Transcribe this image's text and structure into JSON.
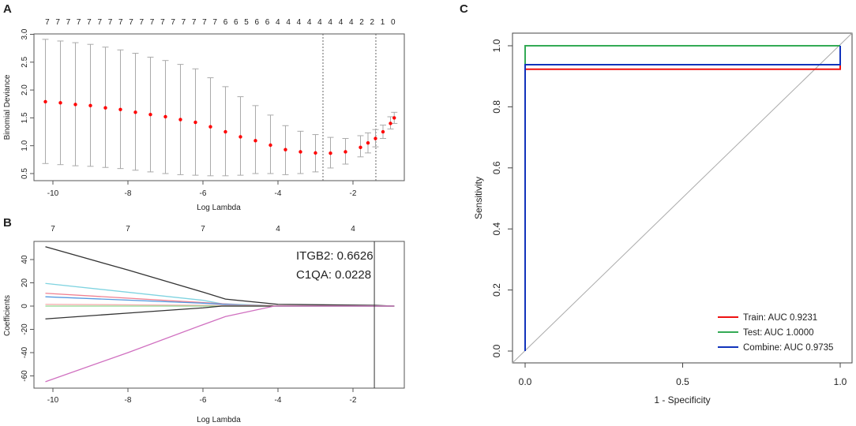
{
  "chart_data": [
    {
      "panel": "A",
      "type": "scatter",
      "title": "",
      "xlabel": "Log Lambda",
      "ylabel": "Binomial Deviance",
      "xlim": [
        -10.5,
        -0.6
      ],
      "ylim": [
        0.4,
        3.05
      ],
      "xticks": [
        -10,
        -8,
        -6,
        -4,
        -2
      ],
      "yticks": [
        0.5,
        1.0,
        1.5,
        2.0,
        2.5,
        3.0
      ],
      "top_counts": [
        "7",
        "7",
        "7",
        "7",
        "7",
        "7",
        "7",
        "7",
        "7",
        "7",
        "7",
        "7",
        "7",
        "7",
        "7",
        "7",
        "7",
        "6",
        "6",
        "5",
        "6",
        "6",
        "4",
        "4",
        "4",
        "4",
        "4",
        "4",
        "4",
        "4",
        "2",
        "2",
        "1",
        "0"
      ],
      "top_counts_range": [
        -10.15,
        -0.93
      ],
      "vlines": [
        -2.8,
        -1.39
      ],
      "points": {
        "x": [
          -10.2,
          -9.8,
          -9.4,
          -9.0,
          -8.6,
          -8.2,
          -7.8,
          -7.4,
          -7.0,
          -6.6,
          -6.2,
          -5.8,
          -5.4,
          -5.0,
          -4.6,
          -4.2,
          -3.8,
          -3.4,
          -3.0,
          -2.6,
          -2.2,
          -1.8,
          -1.6,
          -1.4,
          -1.2,
          -1.0,
          -0.9
        ],
        "mean": [
          1.79,
          1.77,
          1.74,
          1.72,
          1.68,
          1.65,
          1.6,
          1.56,
          1.52,
          1.47,
          1.42,
          1.34,
          1.25,
          1.16,
          1.09,
          1.01,
          0.93,
          0.89,
          0.87,
          0.865,
          0.89,
          0.97,
          1.05,
          1.13,
          1.25,
          1.4,
          1.5
        ],
        "upper": [
          2.91,
          2.88,
          2.85,
          2.82,
          2.77,
          2.72,
          2.66,
          2.59,
          2.53,
          2.46,
          2.38,
          2.22,
          2.06,
          1.88,
          1.72,
          1.55,
          1.36,
          1.26,
          1.2,
          1.15,
          1.13,
          1.18,
          1.23,
          1.29,
          1.37,
          1.52,
          1.6
        ],
        "lower": [
          0.68,
          0.66,
          0.64,
          0.63,
          0.61,
          0.59,
          0.56,
          0.53,
          0.5,
          0.48,
          0.47,
          0.46,
          0.46,
          0.47,
          0.5,
          0.5,
          0.48,
          0.5,
          0.53,
          0.6,
          0.67,
          0.8,
          0.87,
          0.98,
          1.13,
          1.3,
          1.4
        ]
      },
      "point_color": "#ff0000",
      "errorbar_color": "#aaaaaa"
    },
    {
      "panel": "B",
      "type": "line",
      "xlabel": "Log Lambda",
      "ylabel": "Coefficients",
      "xlim": [
        -10.5,
        -0.6
      ],
      "ylim": [
        -71,
        57
      ],
      "xticks": [
        -10,
        -8,
        -6,
        -4,
        -2
      ],
      "yticks": [
        -60,
        -40,
        -20,
        0,
        20,
        40
      ],
      "top_labels": [
        "7",
        "7",
        "7",
        "4",
        "4"
      ],
      "vline": -1.43,
      "annotations": [
        "ITGB2: 0.6626",
        "C1QA: 0.0228"
      ],
      "series": [
        {
          "name": "black-upper",
          "color": "#333333",
          "x": [
            -10.2,
            -8,
            -6,
            -5.4,
            -4,
            -1.4,
            -0.9
          ],
          "y": [
            51,
            31,
            12,
            6,
            1.5,
            0.7,
            0
          ]
        },
        {
          "name": "cyan",
          "color": "#7fd3e0",
          "x": [
            -10.2,
            -6,
            -5.5,
            -4,
            -0.9
          ],
          "y": [
            19.5,
            5,
            2,
            0.3,
            0
          ]
        },
        {
          "name": "pink",
          "color": "#f08090",
          "x": [
            -10.2,
            -6,
            -5,
            -4,
            -0.9
          ],
          "y": [
            11,
            3,
            1,
            0.2,
            0
          ]
        },
        {
          "name": "blue",
          "color": "#5599e0",
          "x": [
            -10.2,
            -6,
            -5,
            -4,
            -0.9
          ],
          "y": [
            8,
            2.5,
            0.8,
            0,
            0
          ]
        },
        {
          "name": "salmon",
          "color": "#f4b0b0",
          "x": [
            -10.2,
            -4,
            -0.9
          ],
          "y": [
            1.5,
            0.3,
            0
          ]
        },
        {
          "name": "green",
          "color": "#90d890",
          "x": [
            -10.2,
            -0.9
          ],
          "y": [
            0,
            0
          ]
        },
        {
          "name": "black-lower",
          "color": "#333333",
          "x": [
            -10.2,
            -8,
            -6,
            -5.5,
            -4,
            -0.9
          ],
          "y": [
            -11,
            -6,
            -1.5,
            0,
            0,
            0
          ]
        },
        {
          "name": "magenta",
          "color": "#d070c0",
          "x": [
            -10.2,
            -8,
            -6,
            -5.4,
            -4.1,
            -0.9
          ],
          "y": [
            -65,
            -40,
            -16,
            -9,
            0,
            0
          ]
        }
      ]
    },
    {
      "panel": "C",
      "type": "line",
      "xlabel": "1 - Specificity",
      "ylabel": "Sensitivity",
      "xlim": [
        -0.04,
        1.04
      ],
      "ylim": [
        -0.04,
        1.04
      ],
      "xticks": [
        "0.0",
        "0.5",
        "1.0"
      ],
      "yticks": [
        "0.0",
        "0.2",
        "0.4",
        "0.6",
        "0.8",
        "1.0"
      ],
      "series": [
        {
          "name": "Train: AUC 0.9231",
          "color": "#ee1111",
          "x": [
            0,
            0,
            1,
            1
          ],
          "y": [
            0,
            0.923,
            0.923,
            1
          ]
        },
        {
          "name": "Test: AUC 1.0000",
          "color": "#33aa55",
          "x": [
            0,
            0,
            1
          ],
          "y": [
            0,
            1,
            1
          ]
        },
        {
          "name": "Combine: AUC 0.9735",
          "color": "#1133bb",
          "x": [
            0,
            0,
            1,
            1
          ],
          "y": [
            0,
            0.938,
            0.938,
            1
          ]
        }
      ],
      "legend_position": "bottom-right",
      "diagonal": true
    }
  ]
}
